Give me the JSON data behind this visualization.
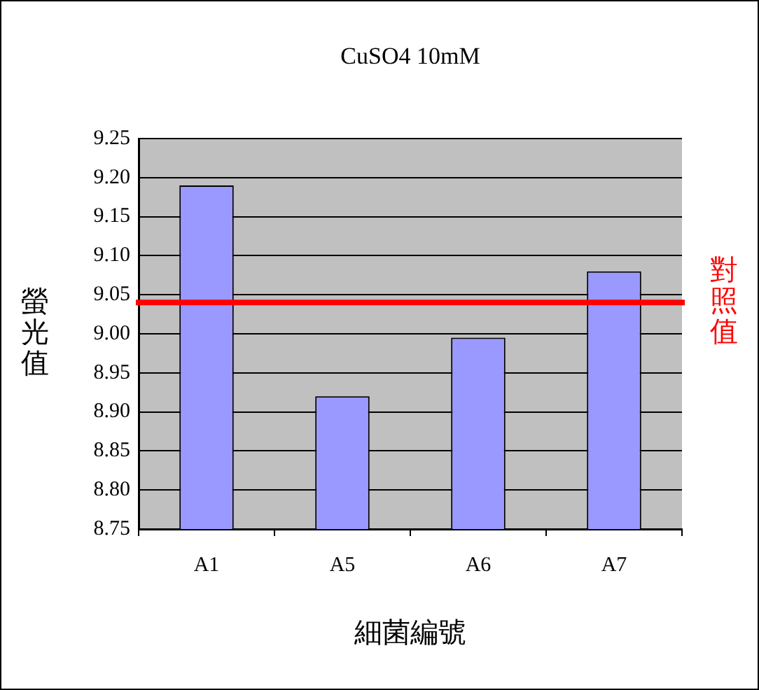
{
  "chart_data": {
    "type": "bar",
    "title": "CuSO4 10mM",
    "xlabel": "細菌編號",
    "ylabel": "螢光值",
    "categories": [
      "A1",
      "A5",
      "A6",
      "A7"
    ],
    "values": [
      9.19,
      8.92,
      8.995,
      9.08
    ],
    "color": "#9999ff",
    "ylim": [
      8.75,
      9.25
    ],
    "yticks": [
      8.75,
      {
        "value": 8.8,
        "label": "8.80"
      },
      8.85,
      {
        "value": 8.9,
        "label": "8.90"
      },
      8.95,
      {
        "value": 9,
        "label": "9.00"
      },
      9.05,
      {
        "value": 9.1,
        "label": "9.10"
      },
      9.15,
      {
        "value": 9.2,
        "label": "9.20"
      },
      9.25
    ],
    "grid": "y",
    "ref_lines": [
      {
        "axis": "y",
        "value": 9.04,
        "label": "對照值",
        "color": "#ff0000"
      }
    ]
  }
}
